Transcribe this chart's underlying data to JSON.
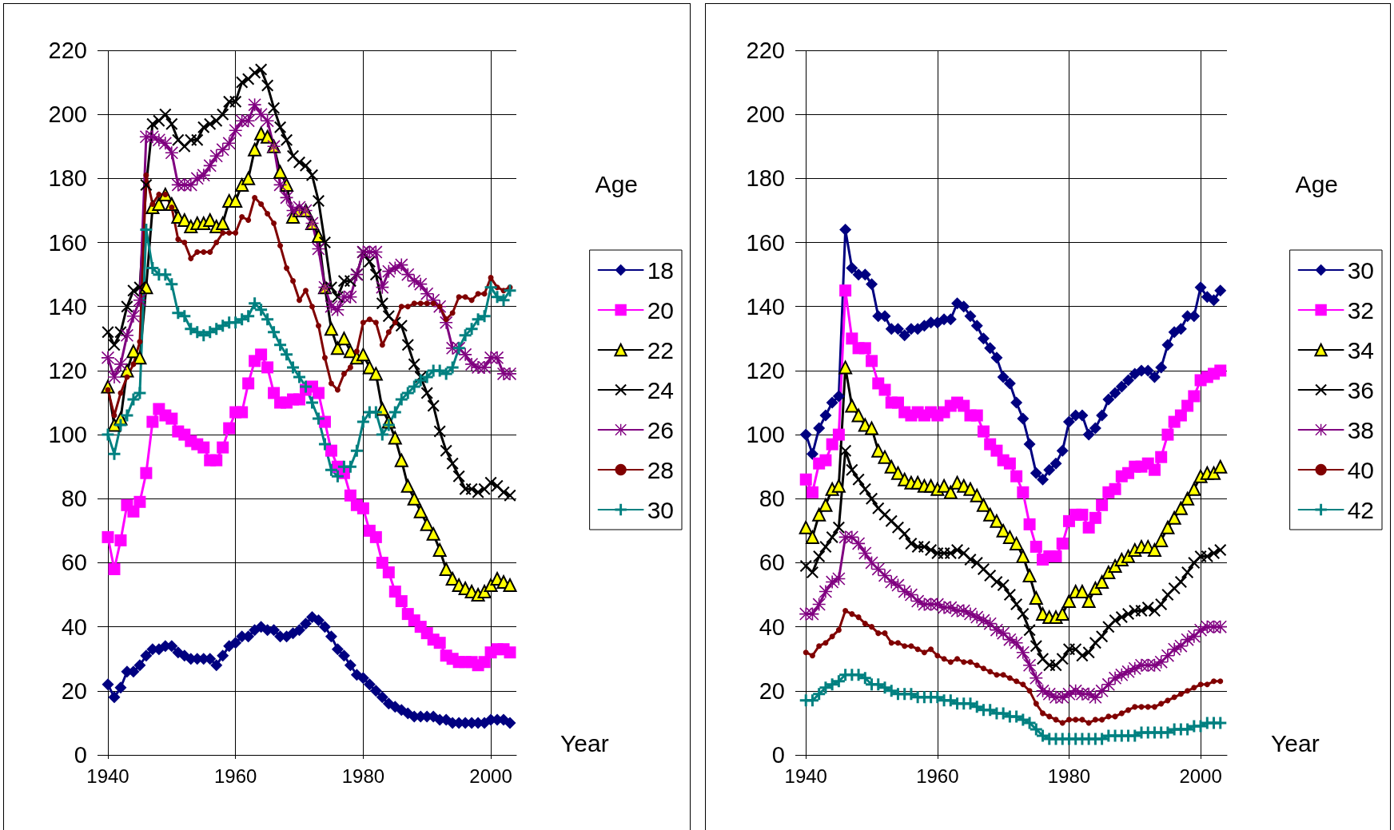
{
  "chart_data": [
    {
      "type": "line",
      "xlabel": "Year",
      "legend_title": "Age",
      "legend": "right",
      "grid": true,
      "x": [
        1940,
        1941,
        1942,
        1943,
        1944,
        1945,
        1946,
        1947,
        1948,
        1949,
        1950,
        1951,
        1952,
        1953,
        1954,
        1955,
        1956,
        1957,
        1958,
        1959,
        1960,
        1961,
        1962,
        1963,
        1964,
        1965,
        1966,
        1967,
        1968,
        1969,
        1970,
        1971,
        1972,
        1973,
        1974,
        1975,
        1976,
        1977,
        1978,
        1979,
        1980,
        1981,
        1982,
        1983,
        1984,
        1985,
        1986,
        1987,
        1988,
        1989,
        1990,
        1991,
        1992,
        1993,
        1994,
        1995,
        1996,
        1997,
        1998,
        1999,
        2000,
        2001,
        2002,
        2003
      ],
      "xlim": [
        1939,
        2004
      ],
      "xticks": [
        1940,
        1960,
        1980,
        2000
      ],
      "ylim": [
        0,
        220
      ],
      "yticks": [
        0,
        20,
        40,
        60,
        80,
        100,
        120,
        140,
        160,
        180,
        200,
        220
      ],
      "series": [
        {
          "name": "18",
          "color": "#000080",
          "marker": "diamond",
          "values": [
            22,
            18,
            21,
            26,
            26,
            28,
            31,
            33,
            33,
            34,
            34,
            32,
            31,
            30,
            30,
            30,
            30,
            28,
            31,
            34,
            35,
            37,
            37,
            39,
            40,
            39,
            39,
            37,
            37,
            38,
            39,
            41,
            43,
            42,
            40,
            37,
            33,
            31,
            28,
            25,
            24,
            22,
            20,
            18,
            16,
            15,
            14,
            13,
            12,
            12,
            12,
            12,
            11,
            11,
            10,
            10,
            10,
            10,
            10,
            10,
            11,
            11,
            11,
            10
          ]
        },
        {
          "name": "20",
          "color": "#ff00ff",
          "marker": "square",
          "values": [
            68,
            58,
            67,
            78,
            76,
            79,
            88,
            104,
            108,
            106,
            105,
            101,
            100,
            98,
            97,
            96,
            92,
            92,
            96,
            102,
            107,
            107,
            116,
            123,
            125,
            121,
            113,
            110,
            110,
            111,
            111,
            114,
            115,
            113,
            104,
            95,
            90,
            88,
            81,
            78,
            77,
            70,
            68,
            60,
            57,
            51,
            48,
            44,
            42,
            40,
            38,
            36,
            35,
            31,
            30,
            29,
            29,
            29,
            28,
            29,
            32,
            33,
            33,
            32
          ]
        },
        {
          "name": "22",
          "color": "#ffff00",
          "marker": "triangle",
          "values": [
            115,
            103,
            105,
            120,
            126,
            124,
            146,
            171,
            172,
            175,
            172,
            168,
            167,
            165,
            166,
            166,
            167,
            165,
            166,
            173,
            173,
            178,
            180,
            189,
            194,
            193,
            190,
            182,
            178,
            168,
            170,
            170,
            166,
            162,
            146,
            133,
            127,
            130,
            126,
            124,
            125,
            121,
            119,
            108,
            104,
            99,
            92,
            84,
            80,
            76,
            72,
            69,
            64,
            58,
            55,
            53,
            52,
            51,
            50,
            51,
            53,
            55,
            54,
            53
          ]
        },
        {
          "name": "24",
          "color": "#000000",
          "marker": "x",
          "values": [
            132,
            128,
            132,
            140,
            145,
            146,
            178,
            197,
            198,
            200,
            197,
            192,
            190,
            192,
            192,
            196,
            197,
            198,
            200,
            204,
            204,
            210,
            211,
            213,
            214,
            209,
            202,
            196,
            192,
            187,
            185,
            184,
            181,
            173,
            160,
            146,
            143,
            148,
            148,
            150,
            157,
            154,
            150,
            141,
            137,
            135,
            134,
            128,
            122,
            118,
            113,
            109,
            101,
            95,
            91,
            87,
            83,
            83,
            82,
            83,
            85,
            84,
            82,
            81
          ]
        },
        {
          "name": "26",
          "color": "#800080",
          "marker": "star",
          "values": [
            124,
            118,
            122,
            131,
            137,
            142,
            193,
            193,
            192,
            191,
            188,
            178,
            178,
            178,
            180,
            181,
            184,
            187,
            189,
            191,
            195,
            198,
            198,
            203,
            200,
            198,
            190,
            178,
            174,
            170,
            171,
            170,
            166,
            158,
            146,
            140,
            139,
            143,
            143,
            150,
            157,
            157,
            157,
            146,
            151,
            152,
            153,
            150,
            148,
            147,
            144,
            142,
            140,
            135,
            127,
            127,
            125,
            122,
            121,
            121,
            124,
            124,
            119,
            119
          ]
        },
        {
          "name": "28",
          "color": "#800000",
          "marker": "circle",
          "values": [
            114,
            106,
            113,
            118,
            122,
            129,
            181,
            172,
            175,
            175,
            171,
            161,
            160,
            155,
            157,
            157,
            157,
            160,
            163,
            163,
            163,
            168,
            167,
            174,
            172,
            169,
            166,
            159,
            152,
            148,
            142,
            145,
            140,
            134,
            124,
            116,
            114,
            119,
            121,
            126,
            135,
            136,
            135,
            128,
            132,
            135,
            140,
            140,
            141,
            141,
            141,
            141,
            140,
            136,
            138,
            143,
            143,
            142,
            144,
            144,
            149,
            146,
            145,
            146
          ]
        },
        {
          "name": "30",
          "color": "#008080",
          "marker": "cross",
          "values": [
            100,
            94,
            103,
            106,
            111,
            113,
            164,
            152,
            150,
            150,
            147,
            138,
            137,
            133,
            132,
            131,
            132,
            133,
            134,
            135,
            135,
            136,
            137,
            141,
            139,
            136,
            132,
            128,
            125,
            121,
            118,
            115,
            110,
            105,
            97,
            89,
            87,
            90,
            90,
            95,
            104,
            107,
            107,
            100,
            103,
            107,
            111,
            113,
            115,
            117,
            118,
            120,
            120,
            119,
            121,
            127,
            131,
            133,
            136,
            137,
            146,
            143,
            142,
            145
          ]
        }
      ]
    },
    {
      "type": "line",
      "xlabel": "Year",
      "legend_title": "Age",
      "legend": "right",
      "grid": true,
      "x": [
        1940,
        1941,
        1942,
        1943,
        1944,
        1945,
        1946,
        1947,
        1948,
        1949,
        1950,
        1951,
        1952,
        1953,
        1954,
        1955,
        1956,
        1957,
        1958,
        1959,
        1960,
        1961,
        1962,
        1963,
        1964,
        1965,
        1966,
        1967,
        1968,
        1969,
        1970,
        1971,
        1972,
        1973,
        1974,
        1975,
        1976,
        1977,
        1978,
        1979,
        1980,
        1981,
        1982,
        1983,
        1984,
        1985,
        1986,
        1987,
        1988,
        1989,
        1990,
        1991,
        1992,
        1993,
        1994,
        1995,
        1996,
        1997,
        1998,
        1999,
        2000,
        2001,
        2002,
        2003
      ],
      "xlim": [
        1939,
        2004
      ],
      "xticks": [
        1940,
        1960,
        1980,
        2000
      ],
      "ylim": [
        0,
        220
      ],
      "yticks": [
        0,
        20,
        40,
        60,
        80,
        100,
        120,
        140,
        160,
        180,
        200,
        220
      ],
      "series": [
        {
          "name": "30",
          "color": "#000080",
          "marker": "diamond",
          "values": [
            100,
            94,
            102,
            106,
            110,
            112,
            164,
            152,
            150,
            150,
            147,
            137,
            137,
            133,
            133,
            131,
            133,
            133,
            134,
            135,
            135,
            136,
            136,
            141,
            140,
            137,
            134,
            130,
            127,
            124,
            118,
            116,
            110,
            105,
            97,
            88,
            86,
            89,
            91,
            95,
            104,
            106,
            106,
            100,
            102,
            106,
            111,
            113,
            115,
            117,
            119,
            120,
            120,
            118,
            121,
            128,
            132,
            133,
            137,
            137,
            146,
            143,
            142,
            145
          ]
        },
        {
          "name": "32",
          "color": "#ff00ff",
          "marker": "square",
          "values": [
            86,
            82,
            91,
            92,
            97,
            100,
            145,
            130,
            127,
            127,
            123,
            116,
            114,
            110,
            110,
            107,
            106,
            107,
            106,
            107,
            106,
            107,
            109,
            110,
            109,
            106,
            106,
            101,
            97,
            95,
            92,
            91,
            87,
            82,
            72,
            65,
            61,
            62,
            62,
            66,
            73,
            75,
            75,
            71,
            74,
            78,
            82,
            83,
            87,
            88,
            90,
            90,
            91,
            89,
            93,
            100,
            104,
            106,
            109,
            112,
            117,
            118,
            119,
            120
          ]
        },
        {
          "name": "34",
          "color": "#ffff00",
          "marker": "triangle",
          "values": [
            71,
            68,
            75,
            78,
            83,
            84,
            121,
            109,
            106,
            103,
            102,
            95,
            93,
            90,
            88,
            86,
            85,
            85,
            84,
            84,
            83,
            84,
            82,
            85,
            84,
            83,
            81,
            78,
            75,
            73,
            70,
            68,
            66,
            62,
            56,
            49,
            44,
            43,
            43,
            44,
            48,
            51,
            51,
            48,
            52,
            54,
            57,
            59,
            61,
            62,
            64,
            65,
            65,
            64,
            67,
            71,
            74,
            77,
            80,
            83,
            87,
            88,
            88,
            90
          ]
        },
        {
          "name": "36",
          "color": "#000000",
          "marker": "x",
          "values": [
            59,
            57,
            62,
            65,
            68,
            71,
            95,
            89,
            86,
            83,
            80,
            77,
            75,
            73,
            71,
            69,
            66,
            65,
            65,
            64,
            63,
            63,
            63,
            64,
            63,
            61,
            60,
            58,
            56,
            54,
            53,
            50,
            47,
            44,
            39,
            34,
            30,
            28,
            28,
            30,
            33,
            33,
            31,
            32,
            35,
            37,
            40,
            42,
            43,
            44,
            45,
            45,
            46,
            45,
            47,
            50,
            52,
            54,
            57,
            60,
            62,
            62,
            63,
            64
          ]
        },
        {
          "name": "38",
          "color": "#800080",
          "marker": "star",
          "values": [
            44,
            44,
            47,
            51,
            54,
            55,
            68,
            68,
            66,
            63,
            60,
            58,
            56,
            54,
            53,
            51,
            50,
            48,
            47,
            47,
            47,
            46,
            46,
            45,
            45,
            44,
            43,
            42,
            41,
            39,
            38,
            36,
            35,
            32,
            28,
            24,
            20,
            19,
            18,
            18,
            19,
            20,
            19,
            19,
            18,
            20,
            22,
            24,
            25,
            26,
            27,
            28,
            28,
            28,
            29,
            31,
            33,
            34,
            36,
            37,
            39,
            40,
            40,
            40
          ]
        },
        {
          "name": "40",
          "color": "#800000",
          "marker": "circle",
          "values": [
            32,
            31,
            34,
            35,
            37,
            39,
            45,
            44,
            43,
            41,
            40,
            38,
            38,
            35,
            35,
            34,
            34,
            33,
            32,
            33,
            31,
            30,
            29,
            30,
            29,
            29,
            28,
            27,
            26,
            25,
            25,
            24,
            23,
            22,
            20,
            16,
            13,
            12,
            11,
            10,
            11,
            11,
            11,
            10,
            11,
            11,
            12,
            12,
            13,
            14,
            15,
            15,
            15,
            15,
            16,
            17,
            18,
            19,
            20,
            21,
            22,
            22,
            23,
            23
          ]
        },
        {
          "name": "42",
          "color": "#008080",
          "marker": "cross",
          "values": [
            17,
            17,
            19,
            21,
            22,
            23,
            25,
            25,
            25,
            24,
            22,
            22,
            21,
            20,
            19,
            19,
            19,
            18,
            18,
            18,
            18,
            17,
            17,
            16,
            16,
            16,
            15,
            14,
            14,
            13,
            13,
            12,
            12,
            11,
            10,
            8,
            6,
            5,
            5,
            5,
            5,
            5,
            5,
            5,
            5,
            5,
            6,
            6,
            6,
            6,
            6,
            7,
            7,
            7,
            7,
            7,
            8,
            8,
            8,
            9,
            9,
            10,
            10,
            10
          ]
        }
      ]
    }
  ]
}
